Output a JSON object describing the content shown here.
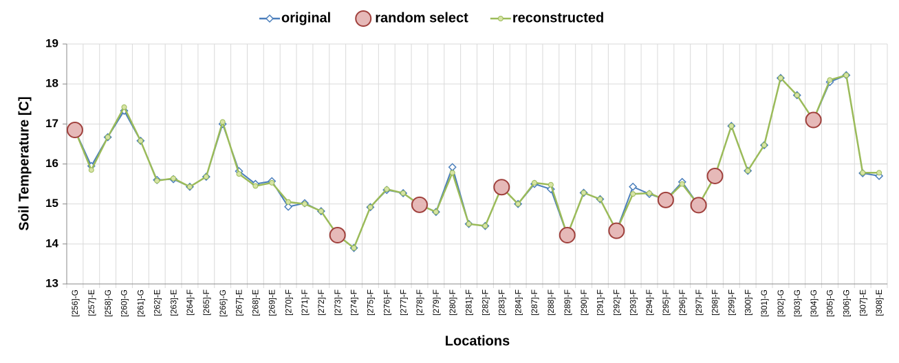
{
  "chart_data": {
    "type": "line",
    "x_label": "Locations",
    "y_label": "Soil Temperature [C]",
    "categories": [
      "[256]-G",
      "[257]-E",
      "[258]-G",
      "[260]-G",
      "[261]-G",
      "[262]-E",
      "[263]-E",
      "[264]-F",
      "[265]-F",
      "[266]-G",
      "[267]-E",
      "[268]-E",
      "[269]-E",
      "[270]-F",
      "[271]-F",
      "[272]-F",
      "[273]-F",
      "[274]-F",
      "[275]-F",
      "[276]-F",
      "[277]-F",
      "[278]-F",
      "[279]-F",
      "[280]-F",
      "[281]-F",
      "[282]-F",
      "[283]-F",
      "[284]-F",
      "[287]-F",
      "[288]-F",
      "[289]-F",
      "[290]-F",
      "[291]-F",
      "[292]-F",
      "[293]-F",
      "[294]-F",
      "[295]-F",
      "[296]-F",
      "[297]-F",
      "[298]-F",
      "[299]-F",
      "[300]-F",
      "[301]-G",
      "[302]-G",
      "[303]-G",
      "[304]-G",
      "[305]-G",
      "[306]-G",
      "[307]-E",
      "[308]-E"
    ],
    "series": [
      {
        "name": "original",
        "color": "#4a7ebb",
        "marker": "diamond",
        "line": true,
        "values": [
          16.85,
          15.95,
          16.67,
          17.33,
          16.58,
          15.6,
          15.62,
          15.43,
          15.68,
          17.0,
          15.82,
          15.5,
          15.57,
          14.93,
          15.02,
          14.82,
          14.22,
          13.9,
          14.92,
          15.35,
          15.27,
          14.98,
          14.8,
          15.92,
          14.5,
          14.45,
          15.42,
          15.0,
          15.5,
          15.37,
          14.22,
          15.28,
          15.12,
          14.33,
          15.43,
          15.25,
          15.1,
          15.55,
          14.97,
          15.7,
          16.95,
          15.83,
          16.47,
          18.15,
          17.72,
          17.1,
          18.05,
          18.22,
          15.77,
          15.7
        ]
      },
      {
        "name": "random select",
        "color": "#a0403c",
        "marker": "circle",
        "line": false,
        "values": [
          16.85,
          null,
          null,
          null,
          null,
          null,
          null,
          null,
          null,
          null,
          null,
          null,
          null,
          null,
          null,
          null,
          14.22,
          null,
          null,
          null,
          null,
          14.98,
          null,
          null,
          null,
          null,
          15.42,
          null,
          null,
          null,
          14.22,
          null,
          null,
          14.33,
          null,
          null,
          15.1,
          null,
          14.97,
          15.7,
          null,
          null,
          null,
          null,
          null,
          17.1,
          null,
          null,
          null,
          null
        ]
      },
      {
        "name": "reconstructed",
        "color": "#9bbb59",
        "marker": "dot",
        "line": true,
        "values": [
          16.85,
          15.85,
          16.67,
          17.42,
          16.58,
          15.58,
          15.64,
          15.43,
          15.68,
          17.05,
          15.75,
          15.45,
          15.53,
          15.05,
          15.0,
          14.82,
          14.22,
          13.9,
          14.92,
          15.37,
          15.27,
          14.98,
          14.8,
          15.78,
          14.5,
          14.45,
          15.42,
          15.0,
          15.53,
          15.48,
          14.22,
          15.28,
          15.12,
          14.33,
          15.25,
          15.27,
          15.1,
          15.5,
          14.97,
          15.7,
          16.95,
          15.83,
          16.47,
          18.15,
          17.72,
          17.1,
          18.1,
          18.22,
          15.78,
          15.78
        ]
      }
    ],
    "ylim": [
      13,
      19
    ],
    "yticks": [
      13,
      14,
      15,
      16,
      17,
      18,
      19
    ],
    "grid": true,
    "legend": "top"
  }
}
